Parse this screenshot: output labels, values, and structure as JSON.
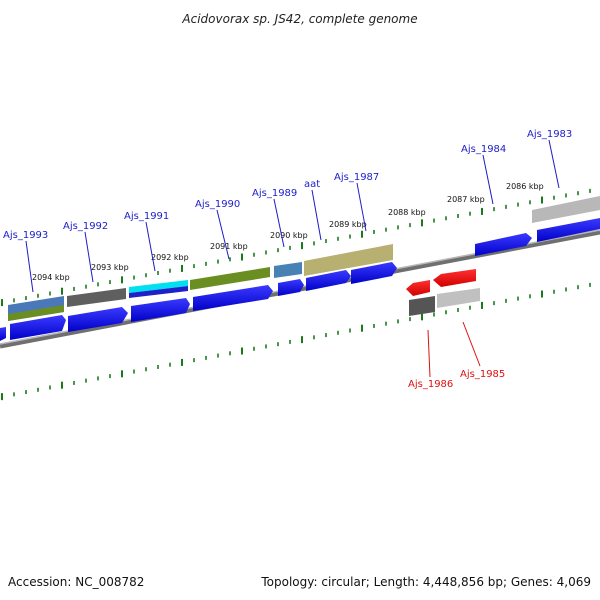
{
  "title": "Acidovorax sp. JS42, complete genome",
  "footer": {
    "accession": "Accession: NC_008782",
    "summary": "Topology: circular; Length: 4,448,856 bp; Genes: 4,069"
  },
  "colors": {
    "plus_strand_label": "#1d1dc9",
    "minus_strand_label": "#dd1111",
    "forward_gene": "#0b0bf0",
    "reverse_gene": "#ff0000",
    "tick": "#1a7a1a",
    "backbone": "#8a8a8a"
  },
  "scale_labels": [
    "2094 kbp",
    "2093 kbp",
    "2092 kbp",
    "2091 kbp",
    "2090 kbp",
    "2089 kbp",
    "2088 kbp",
    "2087 kbp",
    "2086 kbp"
  ],
  "gene_labels_forward": [
    "Ajs_1993",
    "Ajs_1992",
    "Ajs_1991",
    "Ajs_1990",
    "Ajs_1989",
    "aat",
    "Ajs_1987",
    "Ajs_1984",
    "Ajs_1983"
  ],
  "gene_labels_reverse": [
    "Ajs_1986",
    "Ajs_1985"
  ]
}
